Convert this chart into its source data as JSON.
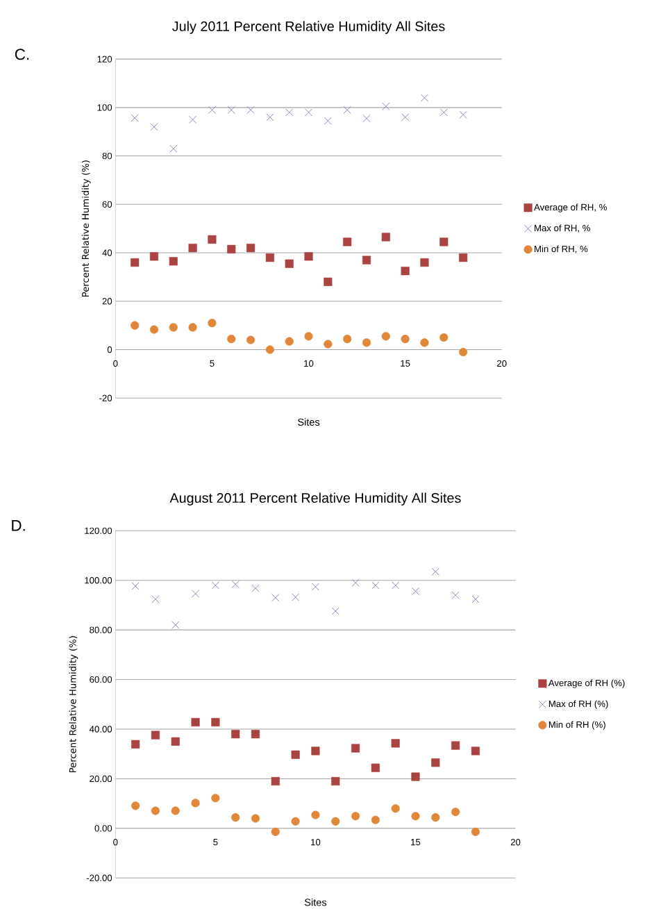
{
  "chart_data": [
    {
      "type": "scatter",
      "title": "July 2011 Percent Relative Humidity All Sites",
      "annotations": [
        "C."
      ],
      "xlabel": "Sites",
      "ylabel": "Percent Relative Humidity (%)",
      "x": [
        1,
        2,
        3,
        4,
        5,
        6,
        7,
        8,
        9,
        10,
        11,
        12,
        13,
        14,
        15,
        16,
        17,
        18
      ],
      "series": [
        {
          "name": "Average of RH, %",
          "color": "#a94442",
          "marker": "square",
          "values": [
            36,
            38.5,
            36.5,
            42,
            45.5,
            41.5,
            42,
            38,
            35.5,
            38.5,
            28,
            44.5,
            37,
            46.5,
            32.5,
            36,
            44.5,
            38
          ]
        },
        {
          "name": "Max of RH, %",
          "color": "#8b7bb5",
          "marker": "cross",
          "values": [
            95.7,
            92,
            83,
            95,
            99,
            99,
            99,
            96,
            98,
            98,
            94.5,
            99,
            95.5,
            100.5,
            96,
            104,
            98,
            97
          ]
        },
        {
          "name": "Min of RH, %",
          "color": "#e0873a",
          "marker": "circle",
          "values": [
            10,
            8.3,
            9.2,
            9.2,
            11,
            4.4,
            4,
            0,
            3.4,
            5.5,
            2.3,
            4.4,
            2.9,
            5.5,
            4.4,
            2.9,
            5,
            -1
          ]
        }
      ],
      "xlim": [
        0,
        20
      ],
      "xticks": [
        0,
        5,
        10,
        15,
        20
      ],
      "ylim": [
        -20,
        120
      ],
      "yticks": [
        -20,
        0,
        20,
        40,
        60,
        80,
        100,
        120
      ],
      "grid": "y",
      "legend": "right"
    },
    {
      "type": "scatter",
      "title": "August 2011 Percent Relative Humidity All Sites",
      "annotations": [
        "D."
      ],
      "xlabel": "Sites",
      "ylabel": "Percent Relative Humidity (%)",
      "x": [
        1,
        2,
        3,
        4,
        5,
        6,
        7,
        8,
        9,
        10,
        11,
        12,
        13,
        14,
        15,
        16,
        17,
        18
      ],
      "series": [
        {
          "name": "Average of RH (%)",
          "color": "#a94442",
          "marker": "square",
          "values": [
            33.9,
            37.6,
            35,
            42.8,
            42.8,
            38,
            38,
            19,
            29.7,
            31.2,
            19,
            32.3,
            24.4,
            34.3,
            20.8,
            26.5,
            33.4,
            31.2
          ]
        },
        {
          "name": "Max of RH (%)",
          "color": "#8b7bb5",
          "marker": "cross",
          "values": [
            97.7,
            92.4,
            82,
            94.6,
            98,
            98.4,
            96.8,
            93,
            93.2,
            97.4,
            87.6,
            99,
            98,
            98,
            95.6,
            103.5,
            94,
            92.4
          ]
        },
        {
          "name": "Min of RH (%)",
          "color": "#e0873a",
          "marker": "circle",
          "values": [
            9.1,
            7.1,
            7.1,
            10.2,
            12.2,
            4.4,
            4,
            -1.4,
            2.8,
            5.4,
            2.8,
            4.9,
            3.4,
            8,
            4.9,
            4.4,
            6.6,
            -1.4
          ]
        }
      ],
      "xlim": [
        0,
        20
      ],
      "xticks": [
        0,
        5,
        10,
        15,
        20
      ],
      "ylim": [
        -20,
        120
      ],
      "yticks": [
        {
          "value": -20,
          "label": "-20.00"
        },
        {
          "value": 0,
          "label": "0.00"
        },
        {
          "value": 20,
          "label": "20.00"
        },
        {
          "value": 40,
          "label": "40.00"
        },
        {
          "value": 60,
          "label": "60.00"
        },
        {
          "value": 80,
          "label": "80.00"
        },
        {
          "value": 100,
          "label": "100.00"
        },
        {
          "value": 120,
          "label": "120.00"
        }
      ],
      "grid": "y",
      "legend": "right"
    }
  ]
}
